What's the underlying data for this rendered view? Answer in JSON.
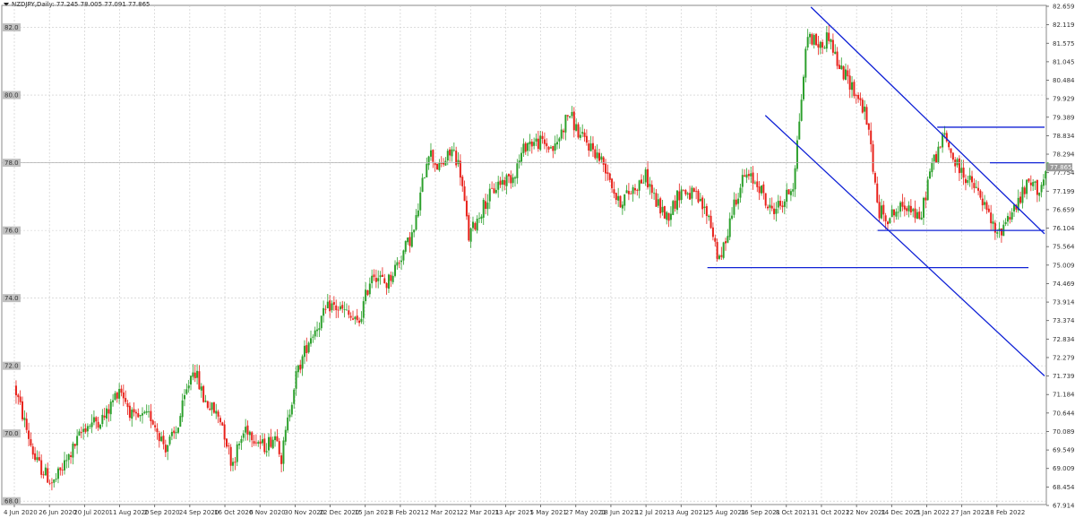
{
  "header": {
    "symbol": "NZDJPY,Daily:",
    "ohlc": "77.245 78.005 77.091 77.865"
  },
  "chart_data": {
    "type": "candlestick",
    "symbol": "NZDJPY",
    "timeframe": "Daily",
    "ylim": [
      67.9,
      82.65
    ],
    "left_levels": [
      "82.0",
      "80.0",
      "78.0",
      "76.0",
      "74.0",
      "72.0",
      "70.0",
      "68.0"
    ],
    "right_ticks": [
      "82.659",
      "82.119",
      "81.575",
      "81.045",
      "80.484",
      "79.929",
      "79.389",
      "78.834",
      "78.294",
      "77.754",
      "77.199",
      "76.659",
      "76.104",
      "75.564",
      "75.009",
      "74.469",
      "73.914",
      "73.374",
      "72.834",
      "72.279",
      "71.739",
      "71.184",
      "70.644",
      "70.089",
      "69.549",
      "69.009",
      "68.454",
      "67.914"
    ],
    "current_price": "77.865",
    "grid": true,
    "x_ticks": [
      "4 Jun 2020",
      "26 Jun 2020",
      "20 Jul 2020",
      "11 Aug 2020",
      "2 Sep 2020",
      "24 Sep 2020",
      "16 Oct 2020",
      "6 Nov 2020",
      "30 Nov 2020",
      "22 Dec 2020",
      "15 Jan 2021",
      "8 Feb 2021",
      "2 Mar 2021",
      "22 Mar 2021",
      "13 Apr 2021",
      "5 May 2021",
      "27 May 2021",
      "18 Jun 2021",
      "12 Jul 2021",
      "3 Aug 2021",
      "25 Aug 2021",
      "16 Sep 2021",
      "8 Oct 2021",
      "31 Oct 2021",
      "22 Nov 2021",
      "14 Dec 2021",
      "5 Jan 2022",
      "27 Jan 2022",
      "18 Feb 2022"
    ],
    "price_path": [
      [
        0,
        71.4
      ],
      [
        0.6,
        69.2
      ],
      [
        1.1,
        68.5
      ],
      [
        1.5,
        69.2
      ],
      [
        2,
        70.2
      ],
      [
        2.6,
        70.5
      ],
      [
        3,
        71.4
      ],
      [
        3.4,
        70.4
      ],
      [
        3.9,
        70.5
      ],
      [
        4.3,
        69.6
      ],
      [
        4.6,
        70.0
      ],
      [
        5.1,
        72.0
      ],
      [
        5.4,
        71.0
      ],
      [
        5.9,
        70.4
      ],
      [
        6.2,
        69.1
      ],
      [
        6.6,
        70.2
      ],
      [
        7.1,
        69.6
      ],
      [
        7.5,
        70.0
      ],
      [
        7.6,
        69.2
      ],
      [
        8,
        71.6
      ],
      [
        8.4,
        72.8
      ],
      [
        9,
        73.8
      ],
      [
        9.4,
        73.6
      ],
      [
        9.8,
        73.2
      ],
      [
        10.2,
        74.8
      ],
      [
        10.6,
        74.4
      ],
      [
        11,
        75.2
      ],
      [
        11.4,
        76.0
      ],
      [
        11.8,
        78.4
      ],
      [
        12.1,
        77.8
      ],
      [
        12.5,
        78.4
      ],
      [
        12.7,
        77.8
      ],
      [
        12.95,
        75.8
      ],
      [
        13.4,
        76.8
      ],
      [
        13.8,
        77.4
      ],
      [
        14.2,
        77.6
      ],
      [
        14.6,
        78.6
      ],
      [
        15,
        78.6
      ],
      [
        15.4,
        78.4
      ],
      [
        15.8,
        79.5
      ],
      [
        16.1,
        78.8
      ],
      [
        16.5,
        78.4
      ],
      [
        16.9,
        77.8
      ],
      [
        17.2,
        76.8
      ],
      [
        17.6,
        77.2
      ],
      [
        18,
        77.6
      ],
      [
        18.3,
        76.8
      ],
      [
        18.6,
        76.4
      ],
      [
        19,
        77.2
      ],
      [
        19.4,
        77.0
      ],
      [
        19.8,
        76.4
      ],
      [
        20.1,
        75.0
      ],
      [
        20.5,
        76.8
      ],
      [
        20.8,
        77.6
      ],
      [
        21.2,
        77.4
      ],
      [
        21.5,
        76.6
      ],
      [
        21.9,
        76.8
      ],
      [
        22.2,
        77.4
      ],
      [
        22.6,
        81.8
      ],
      [
        23,
        81.4
      ],
      [
        23.2,
        81.8
      ],
      [
        23.5,
        80.8
      ],
      [
        23.8,
        80.4
      ],
      [
        24.2,
        79.6
      ],
      [
        24.4,
        78.6
      ],
      [
        24.6,
        76.6
      ],
      [
        24.9,
        76.4
      ],
      [
        25.2,
        76.6
      ],
      [
        25.5,
        76.8
      ],
      [
        25.8,
        76.2
      ],
      [
        26.1,
        77.8
      ],
      [
        26.5,
        78.8
      ],
      [
        26.8,
        78.0
      ],
      [
        27.1,
        77.6
      ],
      [
        27.4,
        77.2
      ],
      [
        27.7,
        76.6
      ],
      [
        28,
        75.8
      ],
      [
        28.3,
        76.4
      ],
      [
        28.6,
        76.8
      ],
      [
        28.9,
        77.4
      ],
      [
        29.2,
        77.2
      ],
      [
        29.45,
        77.8
      ]
    ],
    "trendlines": [
      {
        "from": [
          22.7,
          82.6
        ],
        "to": [
          29.9,
          75.9
        ]
      },
      {
        "from": [
          21.4,
          79.4
        ],
        "to": [
          29.8,
          71.7
        ]
      },
      {
        "from": [
          24.6,
          76.0
        ],
        "to": [
          29.9,
          76.0
        ]
      },
      {
        "from": [
          19.75,
          74.9
        ],
        "to": [
          28.9,
          74.9
        ]
      },
      {
        "from": [
          26.3,
          79.05
        ],
        "to": [
          29.9,
          79.05
        ]
      },
      {
        "from": [
          27.8,
          78.0
        ],
        "to": [
          29.9,
          78.0
        ]
      }
    ],
    "colors": {
      "bull": "#2ca02c",
      "bear": "#e8221b",
      "trendline": "#1022d6",
      "grid": "#c8c8c8",
      "levelbox": "#c0c0c0",
      "price_line": "#b0b0b0",
      "price_box": "#9a9a9a"
    }
  }
}
